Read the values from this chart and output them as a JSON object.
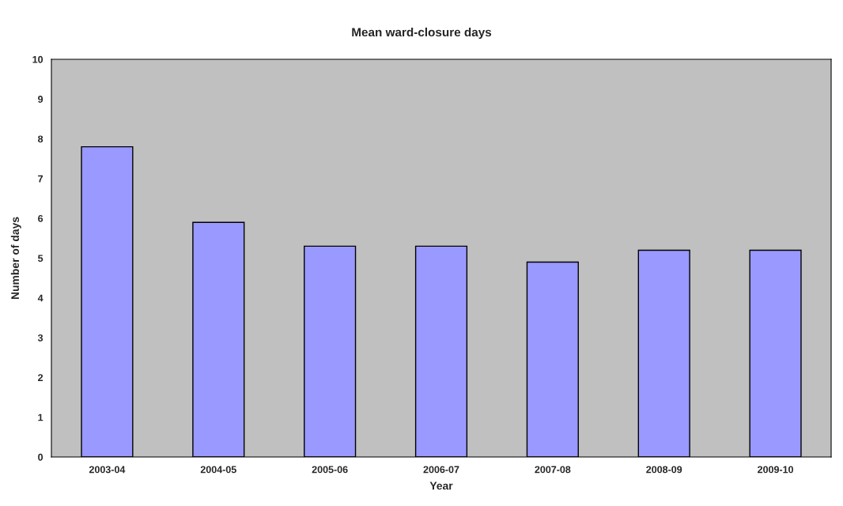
{
  "chart_data": {
    "type": "bar",
    "title": "Mean ward-closure days",
    "xlabel": "Year",
    "ylabel": "Number of days",
    "categories": [
      "2003-04",
      "2004-05",
      "2005-06",
      "2006-07",
      "2007-08",
      "2008-09",
      "2009-10"
    ],
    "values": [
      7.8,
      5.9,
      5.3,
      5.3,
      4.9,
      5.2,
      5.2
    ],
    "color": "#9999ff",
    "ylim": [
      0,
      10
    ],
    "yticks": [
      0,
      1,
      2,
      3,
      4,
      5,
      6,
      7,
      8,
      9,
      10
    ],
    "grid": false
  }
}
